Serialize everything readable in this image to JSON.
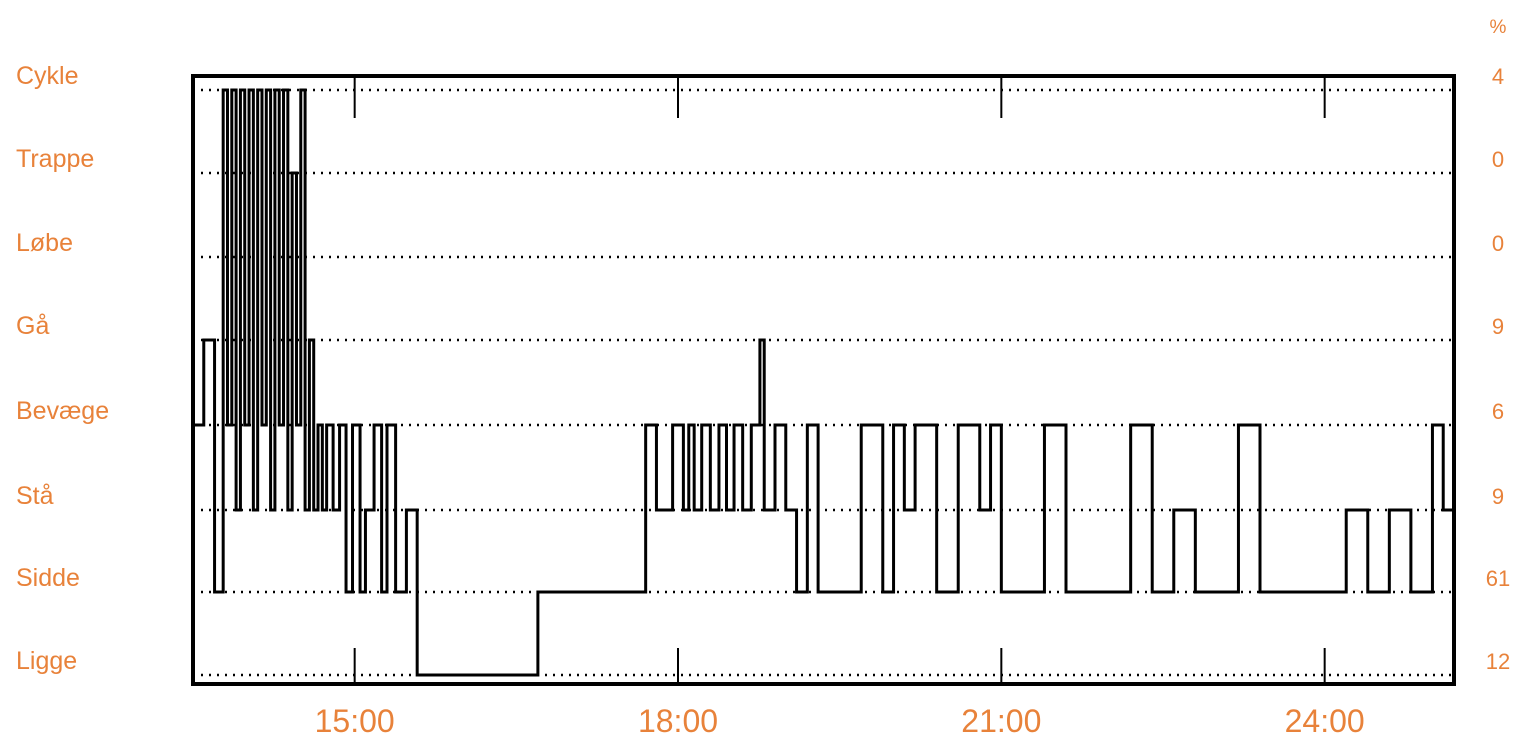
{
  "chart_data": {
    "type": "line",
    "categories": [
      "Cykle",
      "Trappe",
      "Løbe",
      "Gå",
      "Bevæge",
      "Stå",
      "Sidde",
      "Ligge"
    ],
    "percentages": [
      "4",
      "0",
      "0",
      "9",
      "6",
      "9",
      "61",
      "12"
    ],
    "percent_unit": "%",
    "x_ticks": [
      "15:00",
      "18:00",
      "21:00",
      "24:00"
    ],
    "x_tick_hours": [
      15,
      18,
      21,
      24
    ],
    "xlim": [
      13.5,
      25.2
    ],
    "grid": true,
    "accent_color": "#E8823A",
    "line_color": "#000000",
    "series": [
      {
        "x": [
          13.5,
          13.6,
          13.7,
          13.78,
          13.82,
          13.86,
          13.9,
          13.94,
          13.98,
          14.02,
          14.06,
          14.1,
          14.14,
          14.18,
          14.22,
          14.26,
          14.3,
          14.34,
          14.38,
          14.42,
          14.46,
          14.5,
          14.54,
          14.58,
          14.62,
          14.66,
          14.7,
          14.74,
          14.8,
          14.86,
          14.92,
          14.98,
          15.05,
          15.1,
          15.18,
          15.25,
          15.3,
          15.38,
          15.48,
          15.58,
          15.78,
          15.95,
          16.3,
          16.7,
          17.0,
          17.5,
          17.7,
          17.8,
          17.95,
          18.05,
          18.1,
          18.15,
          18.22,
          18.3,
          18.38,
          18.45,
          18.52,
          18.6,
          18.68,
          18.76,
          18.8,
          18.9,
          19.0,
          19.1,
          19.2,
          19.3,
          19.5,
          19.7,
          19.9,
          20.0,
          20.1,
          20.2,
          20.4,
          20.6,
          20.8,
          20.9,
          21.0,
          21.2,
          21.4,
          21.6,
          21.8,
          22.0,
          22.2,
          22.4,
          22.6,
          22.8,
          23.0,
          23.2,
          23.4,
          23.6,
          23.8,
          24.0,
          24.2,
          24.4,
          24.6,
          24.8,
          25.0,
          25.1,
          25.2
        ],
        "y": [
          3,
          4,
          1,
          7,
          3,
          7,
          2,
          7,
          3,
          7,
          2,
          7,
          3,
          7,
          2,
          7,
          3,
          7,
          2,
          6,
          3,
          7,
          2,
          4,
          2,
          3,
          2,
          3,
          2,
          3,
          1,
          3,
          1,
          2,
          3,
          1,
          3,
          1,
          2,
          0,
          0,
          0,
          0,
          1,
          1,
          1,
          3,
          2,
          3,
          2,
          3,
          2,
          3,
          2,
          3,
          2,
          3,
          2,
          3,
          4,
          2,
          3,
          2,
          1,
          3,
          1,
          1,
          3,
          1,
          3,
          2,
          3,
          1,
          3,
          2,
          3,
          1,
          1,
          3,
          1,
          1,
          1,
          3,
          1,
          2,
          1,
          1,
          3,
          1,
          1,
          1,
          1,
          2,
          1,
          2,
          1,
          3,
          2,
          3
        ]
      }
    ]
  }
}
